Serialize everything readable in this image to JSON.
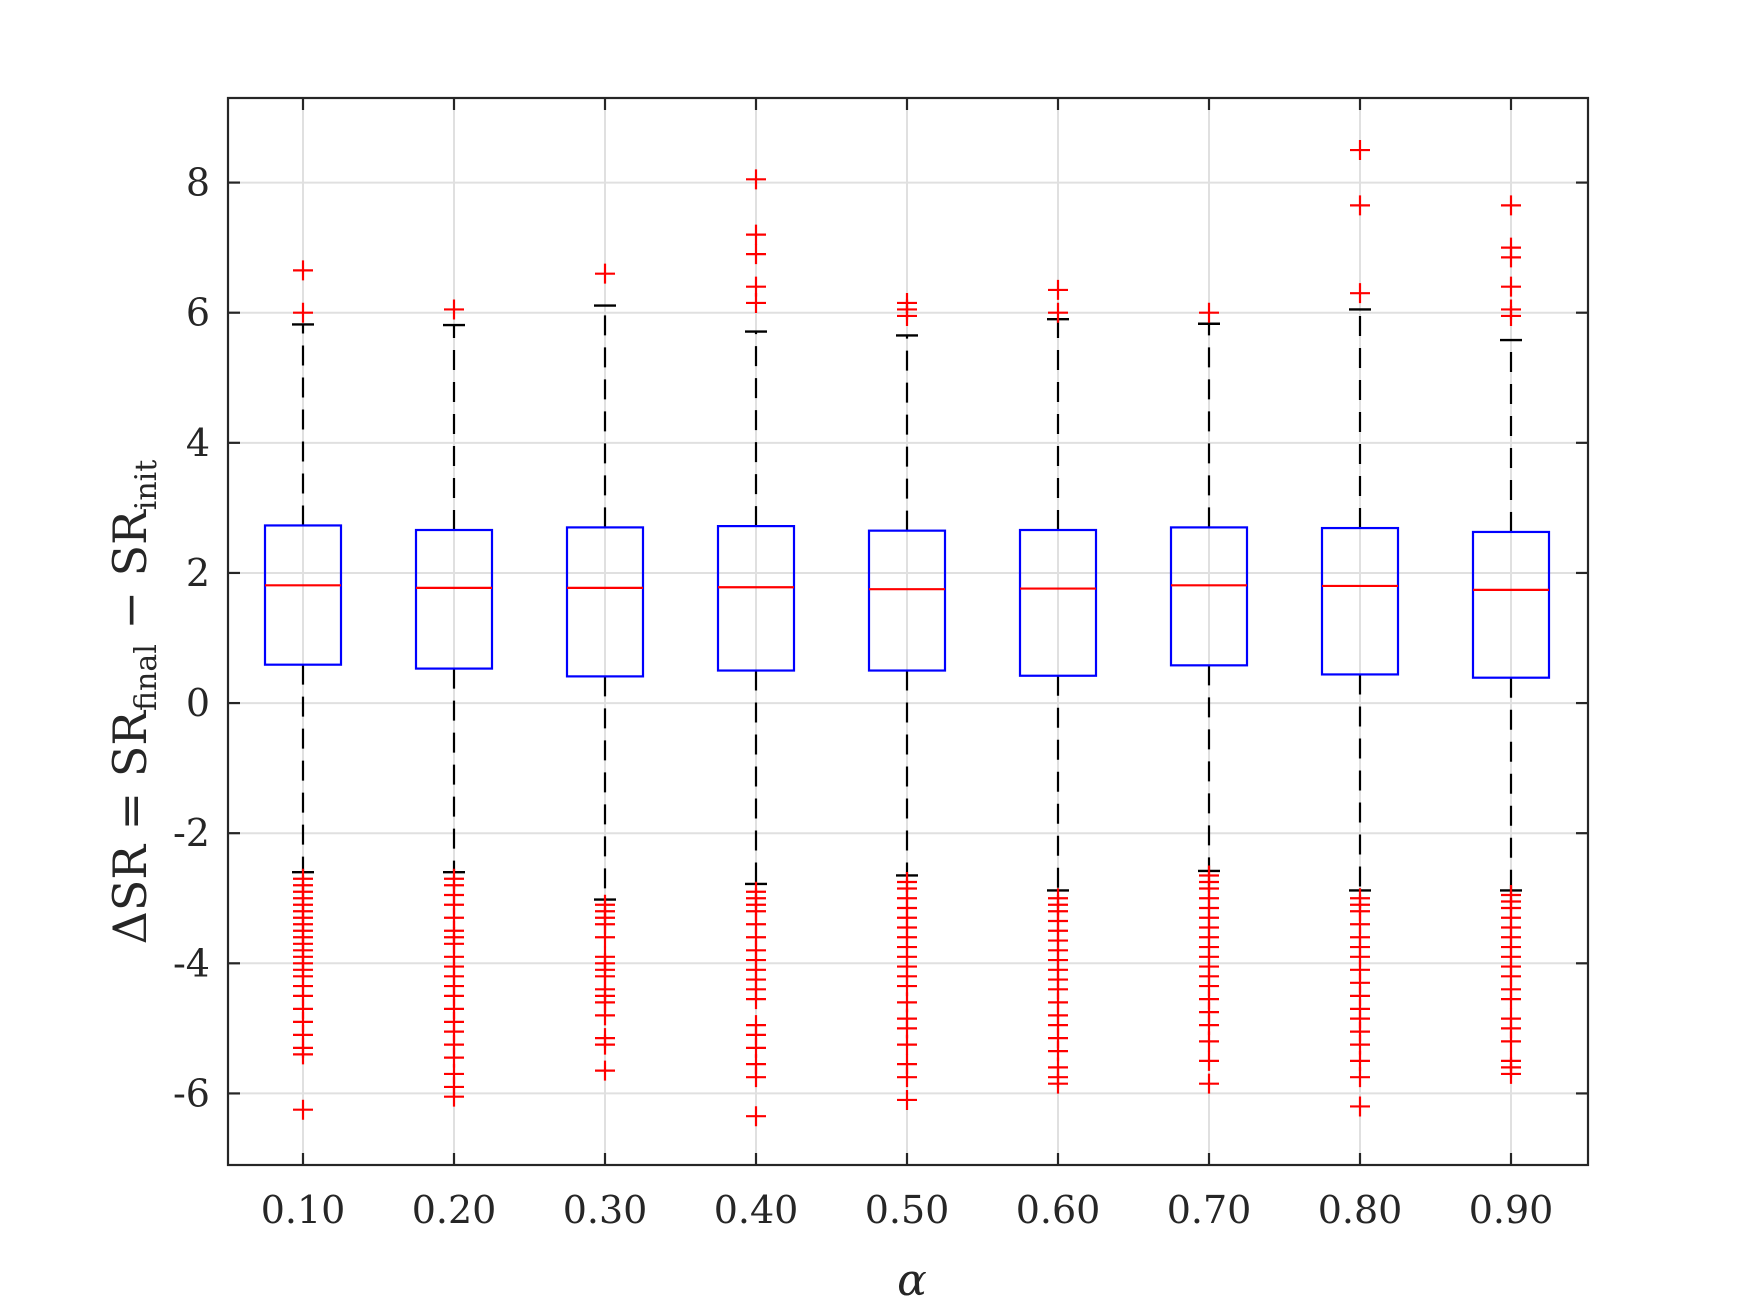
{
  "chart_data": {
    "type": "box",
    "xlabel": "α",
    "ylabel": {
      "prefix": "ΔSR = SR",
      "sub1": "final",
      "middle": " − SR",
      "sub2": "init"
    },
    "categories": [
      "0.10",
      "0.20",
      "0.30",
      "0.40",
      "0.50",
      "0.60",
      "0.70",
      "0.80",
      "0.90"
    ],
    "ylim": [
      -7.1,
      9.3
    ],
    "yticks": [
      -6,
      -4,
      -2,
      0,
      2,
      4,
      6,
      8
    ],
    "ytick_labels": [
      "-6",
      "-4",
      "-2",
      "0",
      "2",
      "4",
      "6",
      "8"
    ],
    "grid": true,
    "colors": {
      "box": "#0000ff",
      "median": "#ff0000",
      "whisker": "#000000",
      "outlier": "#ff0000",
      "grid": "#e0e0e0",
      "axis": "#262626"
    },
    "boxes": [
      {
        "q1": 0.59,
        "median": 1.81,
        "q3": 2.73,
        "whisker_low": -2.6,
        "whisker_high": 5.82,
        "outliers": [
          6.65,
          6.0,
          -2.7,
          -2.8,
          -2.9,
          -3.0,
          -3.1,
          -3.2,
          -3.3,
          -3.4,
          -3.5,
          -3.6,
          -3.7,
          -3.8,
          -3.9,
          -4.0,
          -4.1,
          -4.2,
          -4.35,
          -4.5,
          -4.7,
          -4.9,
          -5.1,
          -5.3,
          -5.4,
          -6.25
        ]
      },
      {
        "q1": 0.53,
        "median": 1.77,
        "q3": 2.66,
        "whisker_low": -2.6,
        "whisker_high": 5.81,
        "outliers": [
          6.05,
          -2.7,
          -2.8,
          -2.95,
          -3.1,
          -3.3,
          -3.5,
          -3.6,
          -3.7,
          -3.9,
          -4.05,
          -4.2,
          -4.35,
          -4.5,
          -4.7,
          -4.9,
          -5.05,
          -5.25,
          -5.45,
          -5.7,
          -5.9,
          -6.05
        ]
      },
      {
        "q1": 0.41,
        "median": 1.77,
        "q3": 2.7,
        "whisker_low": -3.02,
        "whisker_high": 6.11,
        "outliers": [
          6.6,
          -3.1,
          -3.2,
          -3.3,
          -3.4,
          -3.6,
          -3.9,
          -4.0,
          -4.1,
          -4.2,
          -4.4,
          -4.5,
          -4.6,
          -4.8,
          -5.15,
          -5.25,
          -5.65
        ]
      },
      {
        "q1": 0.5,
        "median": 1.78,
        "q3": 2.72,
        "whisker_low": -2.78,
        "whisker_high": 5.71,
        "outliers": [
          8.05,
          7.2,
          6.9,
          6.4,
          6.15,
          -2.9,
          -3.0,
          -3.1,
          -3.2,
          -3.4,
          -3.6,
          -3.8,
          -3.95,
          -4.1,
          -4.25,
          -4.4,
          -4.55,
          -4.95,
          -5.1,
          -5.3,
          -5.55,
          -5.75,
          -6.35
        ]
      },
      {
        "q1": 0.5,
        "median": 1.75,
        "q3": 2.65,
        "whisker_low": -2.65,
        "whisker_high": 5.65,
        "outliers": [
          6.15,
          6.05,
          5.95,
          -2.75,
          -2.85,
          -3.0,
          -3.15,
          -3.3,
          -3.45,
          -3.6,
          -3.75,
          -3.9,
          -4.05,
          -4.2,
          -4.35,
          -4.6,
          -4.85,
          -5.0,
          -5.25,
          -5.55,
          -5.75,
          -6.1
        ]
      },
      {
        "q1": 0.42,
        "median": 1.76,
        "q3": 2.66,
        "whisker_low": -2.88,
        "whisker_high": 5.9,
        "outliers": [
          6.35,
          6.0,
          -3.0,
          -3.1,
          -3.2,
          -3.35,
          -3.5,
          -3.65,
          -3.8,
          -3.95,
          -4.1,
          -4.25,
          -4.4,
          -4.6,
          -4.8,
          -4.95,
          -5.15,
          -5.35,
          -5.6,
          -5.75,
          -5.85
        ]
      },
      {
        "q1": 0.58,
        "median": 1.81,
        "q3": 2.7,
        "whisker_low": -2.58,
        "whisker_high": 5.83,
        "outliers": [
          6.0,
          -2.65,
          -2.75,
          -2.85,
          -3.0,
          -3.15,
          -3.3,
          -3.45,
          -3.6,
          -3.75,
          -3.9,
          -4.05,
          -4.2,
          -4.35,
          -4.55,
          -4.75,
          -4.95,
          -5.2,
          -5.5,
          -5.85
        ]
      },
      {
        "q1": 0.44,
        "median": 1.8,
        "q3": 2.69,
        "whisker_low": -2.88,
        "whisker_high": 6.05,
        "outliers": [
          8.5,
          7.65,
          6.3,
          -3.0,
          -3.1,
          -3.2,
          -3.4,
          -3.6,
          -3.75,
          -3.9,
          -4.1,
          -4.3,
          -4.5,
          -4.7,
          -4.85,
          -5.05,
          -5.25,
          -5.5,
          -5.75,
          -6.2
        ]
      },
      {
        "q1": 0.39,
        "median": 1.74,
        "q3": 2.63,
        "whisker_low": -2.88,
        "whisker_high": 5.58,
        "outliers": [
          7.65,
          7.0,
          6.85,
          6.4,
          6.05,
          5.95,
          -2.95,
          -3.05,
          -3.15,
          -3.3,
          -3.45,
          -3.6,
          -3.75,
          -3.9,
          -4.05,
          -4.2,
          -4.4,
          -4.55,
          -4.85,
          -5.0,
          -5.2,
          -5.5,
          -5.6,
          -5.7
        ]
      }
    ]
  }
}
